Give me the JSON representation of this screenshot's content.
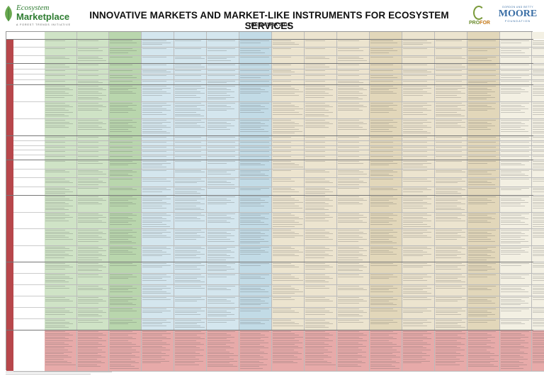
{
  "header": {
    "logo_line1": "Ecosystem",
    "logo_line2": "Marketplace",
    "logo_tagline": "A FOREST TRENDS INITIATIVE",
    "title": "INNOVATIVE MARKETS AND MARKET-LIKE INSTRUMENTS FOR ECOSYSTEM SERVICES",
    "subtitle": "THE MATRIX 2013",
    "profor_pro": "PRO",
    "profor_for": "FOR",
    "moore_top": "GORDON AND BETTY",
    "moore_name": "MOORE",
    "moore_bottom": "FOUNDATION"
  },
  "colors": {
    "green": "#cfe3c6",
    "green_dark": "#b9d6ad",
    "blue": "#d4e6ee",
    "blue_dark": "#c2dbe6",
    "tan": "#ece4cf",
    "tan_dark": "#e2d7ba",
    "cream": "#f3f0e3",
    "pink": "#e7aaa9",
    "band": "#b7474b"
  },
  "bands": [
    {
      "label": "",
      "rows": 3
    },
    {
      "label": "",
      "rows": 4
    },
    {
      "label": "",
      "rows": 3
    },
    {
      "label": "",
      "rows": 5
    },
    {
      "label": "",
      "rows": 4
    },
    {
      "label": "",
      "rows": 4
    },
    {
      "label": "",
      "rows": 6
    },
    {
      "label": "",
      "rows": 1
    }
  ]
}
